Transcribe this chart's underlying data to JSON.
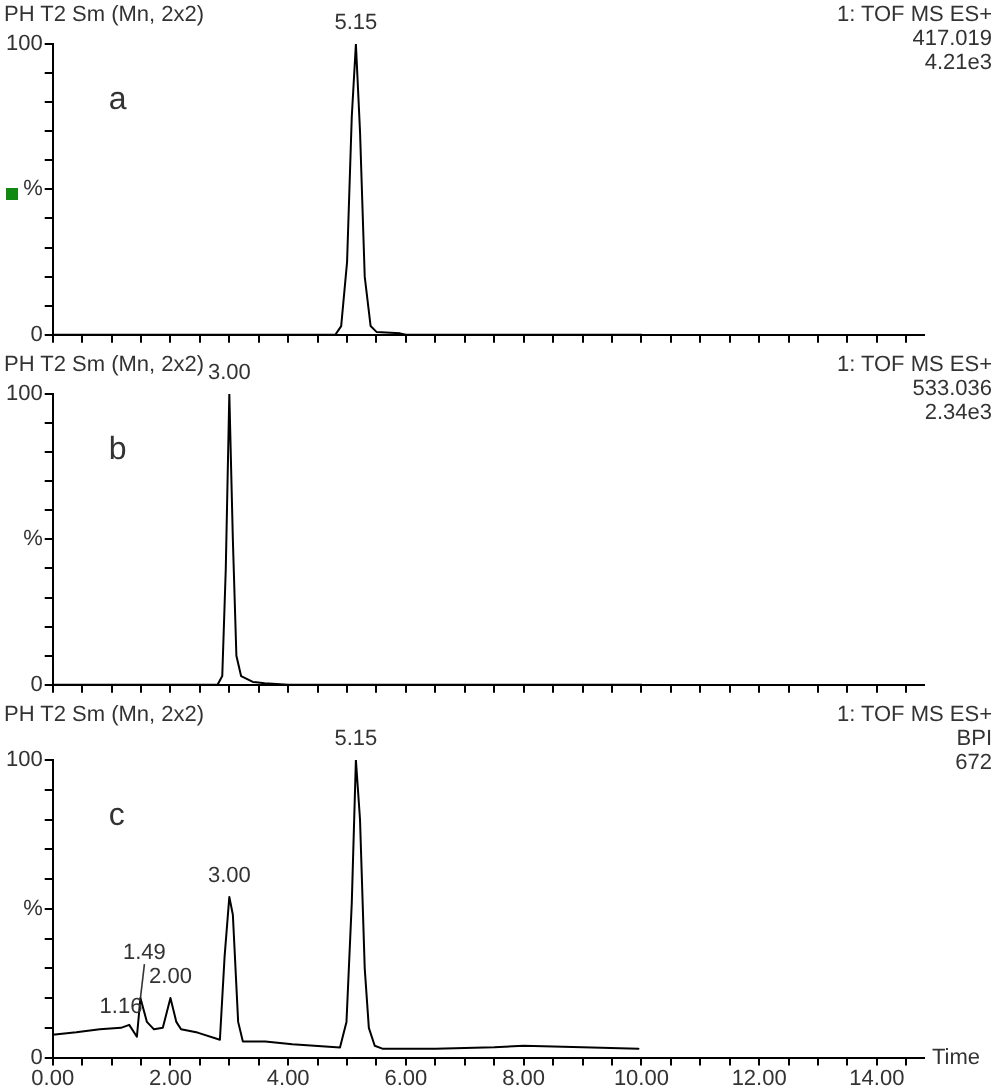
{
  "chart_data": [
    {
      "type": "line",
      "title": "PH T2 Sm (Mn, 2x2)",
      "annotations": [
        "a",
        "1: TOF MS ES+",
        "417.019",
        "4.21e3",
        {
          "text": "5.15",
          "x": 5.15,
          "y": 100
        }
      ],
      "x": [
        0,
        4.8,
        4.9,
        5.0,
        5.08,
        5.15,
        5.22,
        5.3,
        5.4,
        5.5,
        5.9,
        6.0,
        10
      ],
      "values": [
        0,
        0,
        3,
        25,
        75,
        100,
        70,
        20,
        3,
        1,
        0.5,
        0,
        0
      ],
      "color": "#000000",
      "xlim": [
        0,
        14.8
      ],
      "xticks": [
        {
          "value": 0,
          "label": null
        },
        {
          "value": 0.5,
          "label": null
        },
        {
          "value": 1,
          "label": null
        },
        {
          "value": 1.5,
          "label": null
        },
        {
          "value": 2,
          "label": null
        },
        {
          "value": 2.5,
          "label": null
        },
        {
          "value": 3,
          "label": null
        },
        {
          "value": 3.5,
          "label": null
        },
        {
          "value": 4,
          "label": null
        },
        {
          "value": 4.5,
          "label": null
        },
        {
          "value": 5,
          "label": null
        },
        {
          "value": 5.5,
          "label": null
        },
        {
          "value": 6,
          "label": null
        },
        {
          "value": 6.5,
          "label": null
        },
        {
          "value": 7,
          "label": null
        },
        {
          "value": 7.5,
          "label": null
        },
        {
          "value": 8,
          "label": null
        },
        {
          "value": 8.5,
          "label": null
        },
        {
          "value": 9,
          "label": null
        },
        {
          "value": 9.5,
          "label": null
        },
        {
          "value": 10,
          "label": null
        },
        {
          "value": 10.5,
          "label": null
        },
        {
          "value": 11,
          "label": null
        },
        {
          "value": 11.5,
          "label": null
        },
        {
          "value": 12,
          "label": null
        },
        {
          "value": 12.5,
          "label": null
        },
        {
          "value": 13,
          "label": null
        },
        {
          "value": 13.5,
          "label": null
        },
        {
          "value": 14,
          "label": null
        },
        {
          "value": 14.5,
          "label": null
        }
      ],
      "ylim": [
        0,
        100
      ],
      "yticks": [
        {
          "value": 0,
          "label": "0"
        },
        {
          "value": 10,
          "label": null
        },
        {
          "value": 20,
          "label": null
        },
        {
          "value": 30,
          "label": null
        },
        {
          "value": 40,
          "label": null
        },
        {
          "value": 50,
          "label": "%"
        },
        {
          "value": 60,
          "label": null
        },
        {
          "value": 70,
          "label": null
        },
        {
          "value": 80,
          "label": null
        },
        {
          "value": 90,
          "label": null
        },
        {
          "value": 100,
          "label": "100"
        }
      ],
      "tick_labels": "y"
    },
    {
      "type": "line",
      "title": "PH T2 Sm (Mn, 2x2)",
      "annotations": [
        "b",
        "1: TOF MS ES+",
        "533.036",
        "2.34e3",
        {
          "text": "3.00",
          "x": 3.0,
          "y": 100
        }
      ],
      "x": [
        0,
        2.8,
        2.88,
        2.94,
        3.0,
        3.06,
        3.12,
        3.2,
        3.4,
        3.6,
        4.0,
        10
      ],
      "values": [
        0,
        0,
        3,
        40,
        100,
        50,
        10,
        3,
        1,
        0.5,
        0,
        0
      ],
      "color": "#000000",
      "xlim": [
        0,
        14.8
      ],
      "xticks": [
        {
          "value": 0,
          "label": null
        },
        {
          "value": 0.5,
          "label": null
        },
        {
          "value": 1,
          "label": null
        },
        {
          "value": 1.5,
          "label": null
        },
        {
          "value": 2,
          "label": null
        },
        {
          "value": 2.5,
          "label": null
        },
        {
          "value": 3,
          "label": null
        },
        {
          "value": 3.5,
          "label": null
        },
        {
          "value": 4,
          "label": null
        },
        {
          "value": 4.5,
          "label": null
        },
        {
          "value": 5,
          "label": null
        },
        {
          "value": 5.5,
          "label": null
        },
        {
          "value": 6,
          "label": null
        },
        {
          "value": 6.5,
          "label": null
        },
        {
          "value": 7,
          "label": null
        },
        {
          "value": 7.5,
          "label": null
        },
        {
          "value": 8,
          "label": null
        },
        {
          "value": 8.5,
          "label": null
        },
        {
          "value": 9,
          "label": null
        },
        {
          "value": 9.5,
          "label": null
        },
        {
          "value": 10,
          "label": null
        },
        {
          "value": 10.5,
          "label": null
        },
        {
          "value": 11,
          "label": null
        },
        {
          "value": 11.5,
          "label": null
        },
        {
          "value": 12,
          "label": null
        },
        {
          "value": 12.5,
          "label": null
        },
        {
          "value": 13,
          "label": null
        },
        {
          "value": 13.5,
          "label": null
        },
        {
          "value": 14,
          "label": null
        },
        {
          "value": 14.5,
          "label": null
        }
      ],
      "ylim": [
        0,
        100
      ],
      "yticks": [
        {
          "value": 0,
          "label": "0"
        },
        {
          "value": 10,
          "label": null
        },
        {
          "value": 20,
          "label": null
        },
        {
          "value": 30,
          "label": null
        },
        {
          "value": 40,
          "label": null
        },
        {
          "value": 50,
          "label": "%"
        },
        {
          "value": 60,
          "label": null
        },
        {
          "value": 70,
          "label": null
        },
        {
          "value": 80,
          "label": null
        },
        {
          "value": 90,
          "label": null
        },
        {
          "value": 100,
          "label": "100"
        }
      ],
      "tick_labels": "y"
    },
    {
      "type": "line",
      "title": "PH T2 Sm (Mn, 2x2)",
      "xlabel": "Time",
      "annotations": [
        "c",
        "1: TOF MS ES+",
        "BPI",
        "672",
        {
          "text": "5.15",
          "x": 5.15,
          "y": 100
        },
        {
          "text": "3.00",
          "x": 3.0,
          "y": 54
        },
        {
          "text": "2.00",
          "x": 2.0,
          "y": 20
        },
        {
          "text": "1.49",
          "x": 1.49,
          "y": 20
        },
        {
          "text": "1.16",
          "x": 1.16,
          "y": 10
        }
      ],
      "x": [
        0,
        0.4,
        0.8,
        1.16,
        1.3,
        1.43,
        1.49,
        1.6,
        1.72,
        1.87,
        2.0,
        2.1,
        2.18,
        2.46,
        2.84,
        2.92,
        3.0,
        3.06,
        3.15,
        3.23,
        3.61,
        4.07,
        4.88,
        4.99,
        5.08,
        5.15,
        5.22,
        5.3,
        5.37,
        5.47,
        5.6,
        6.5,
        7.5,
        8.0,
        9.0,
        9.95
      ],
      "values": [
        7.7,
        8.5,
        9.5,
        10,
        11,
        7,
        20,
        12,
        9.5,
        10,
        20,
        12,
        9.5,
        8.4,
        6,
        34,
        54,
        48,
        12,
        5.4,
        5.4,
        4.5,
        3.4,
        12,
        52,
        100,
        80,
        30,
        10,
        4,
        3,
        3,
        3.5,
        4,
        3.5,
        3
      ],
      "color": "#000000",
      "xlim": [
        0,
        14.8
      ],
      "xticks": [
        {
          "value": 0,
          "label": "0.00"
        },
        {
          "value": 0.5,
          "label": null
        },
        {
          "value": 1,
          "label": null
        },
        {
          "value": 1.5,
          "label": null
        },
        {
          "value": 2,
          "label": "2.00"
        },
        {
          "value": 2.5,
          "label": null
        },
        {
          "value": 3,
          "label": null
        },
        {
          "value": 3.5,
          "label": null
        },
        {
          "value": 4,
          "label": "4.00"
        },
        {
          "value": 4.5,
          "label": null
        },
        {
          "value": 5,
          "label": null
        },
        {
          "value": 5.5,
          "label": null
        },
        {
          "value": 6,
          "label": "6.00"
        },
        {
          "value": 6.5,
          "label": null
        },
        {
          "value": 7,
          "label": null
        },
        {
          "value": 7.5,
          "label": null
        },
        {
          "value": 8,
          "label": "8.00"
        },
        {
          "value": 8.5,
          "label": null
        },
        {
          "value": 9,
          "label": null
        },
        {
          "value": 9.5,
          "label": null
        },
        {
          "value": 10,
          "label": "10.00"
        },
        {
          "value": 10.5,
          "label": null
        },
        {
          "value": 11,
          "label": null
        },
        {
          "value": 11.5,
          "label": null
        },
        {
          "value": 12,
          "label": "12.00"
        },
        {
          "value": 12.5,
          "label": null
        },
        {
          "value": 13,
          "label": null
        },
        {
          "value": 13.5,
          "label": null
        },
        {
          "value": 14,
          "label": "14.00"
        },
        {
          "value": 14.5,
          "label": null
        }
      ],
      "ylim": [
        0,
        100
      ],
      "yticks": [
        {
          "value": 0,
          "label": "0"
        },
        {
          "value": 10,
          "label": null
        },
        {
          "value": 20,
          "label": null
        },
        {
          "value": 30,
          "label": null
        },
        {
          "value": 40,
          "label": null
        },
        {
          "value": 50,
          "label": "%"
        },
        {
          "value": 60,
          "label": null
        },
        {
          "value": 70,
          "label": null
        },
        {
          "value": 80,
          "label": null
        },
        {
          "value": 90,
          "label": null
        },
        {
          "value": 100,
          "label": "100"
        }
      ]
    }
  ]
}
